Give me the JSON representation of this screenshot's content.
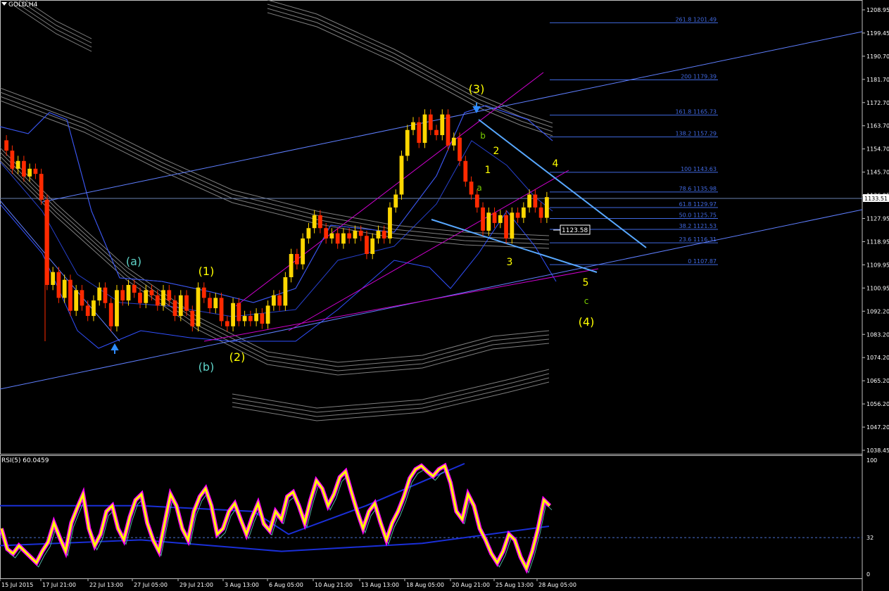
{
  "header": {
    "symbol_label": "GOLD,H4"
  },
  "rsi_panel": {
    "label": "RSI(5) 60.0459",
    "levels": [
      "100",
      "32",
      "0"
    ]
  },
  "colors": {
    "background": "#000000",
    "axis": "#c0c0c0",
    "candle_up": "#ffd700",
    "candle_down": "#ff2a00",
    "bands": "#7f7f7f",
    "bollinger": "#3150ff",
    "fib": "#4169e1",
    "channel": "#d000d0",
    "trend": "#5f7fff",
    "arrow": "#2f8cff",
    "wave_primary": "#ffff00",
    "wave_minor": "#5fd3c8",
    "wave_sub": "#7bd000",
    "rsi_main": "#ffff00",
    "rsi_glow": "#ff00ff"
  },
  "chart_data": {
    "type": "candlestick",
    "title": "GOLD,H4",
    "price_axis": [
      "1208.95",
      "1199.45",
      "1190.70",
      "1181.70",
      "1172.70",
      "1163.70",
      "1154.70",
      "1145.70",
      "1136.95",
      "1127.95",
      "1118.95",
      "1109.95",
      "1100.95",
      "1092.20",
      "1083.20",
      "1074.20",
      "1065.20",
      "1056.20",
      "1047.20",
      "1038.45"
    ],
    "current_price": "1133.51",
    "price_marker": "1123.58",
    "time_axis": [
      "15 Jul 2015",
      "17 Jul 21:00",
      "22 Jul 13:00",
      "27 Jul 05:00",
      "29 Jul 21:00",
      "3 Aug 13:00",
      "6 Aug 05:00",
      "10 Aug 21:00",
      "13 Aug 13:00",
      "18 Aug 05:00",
      "20 Aug 21:00",
      "25 Aug 13:00",
      "28 Aug 05:00"
    ],
    "fibonacci_levels": [
      {
        "label": "261.8 1201.49",
        "price": 1201.49
      },
      {
        "label": "200 1179.39",
        "price": 1179.39
      },
      {
        "label": "161.8 1165.73",
        "price": 1165.73
      },
      {
        "label": "138.2 1157.29",
        "price": 1157.29
      },
      {
        "label": "100 1143.63",
        "price": 1143.63
      },
      {
        "label": "78.6 1135.98",
        "price": 1135.98
      },
      {
        "label": "61.8 1129.97",
        "price": 1129.97
      },
      {
        "label": "50.0 1125.75",
        "price": 1125.75
      },
      {
        "label": "38.2 1121.53",
        "price": 1121.53
      },
      {
        "label": "23.6 1116.31",
        "price": 1116.31
      },
      {
        "label": "0 1107.87",
        "price": 1107.87
      }
    ],
    "wave_labels": [
      {
        "text": "(a)",
        "style": "minor"
      },
      {
        "text": "(b)",
        "style": "minor"
      },
      {
        "text": "(1)",
        "style": "primary"
      },
      {
        "text": "(2)",
        "style": "primary"
      },
      {
        "text": "(3)",
        "style": "primary"
      },
      {
        "text": "(4)",
        "style": "primary"
      },
      {
        "text": "1",
        "style": "primary"
      },
      {
        "text": "2",
        "style": "primary"
      },
      {
        "text": "3",
        "style": "primary"
      },
      {
        "text": "4",
        "style": "primary"
      },
      {
        "text": "5",
        "style": "primary"
      },
      {
        "text": "a",
        "style": "sub"
      },
      {
        "text": "b",
        "style": "sub"
      },
      {
        "text": "c",
        "style": "sub"
      }
    ],
    "price_path": [
      [
        1156,
        1152
      ],
      [
        1152,
        1145
      ],
      [
        1145,
        1148
      ],
      [
        1148,
        1142
      ],
      [
        1142,
        1145
      ],
      [
        1145,
        1143
      ],
      [
        1143,
        1133
      ],
      [
        1133,
        1100
      ],
      [
        1100,
        1105
      ],
      [
        1105,
        1095
      ],
      [
        1095,
        1102
      ],
      [
        1102,
        1090
      ],
      [
        1090,
        1098
      ],
      [
        1098,
        1092
      ],
      [
        1092,
        1088
      ],
      [
        1088,
        1094
      ],
      [
        1094,
        1099
      ],
      [
        1099,
        1093
      ],
      [
        1093,
        1084
      ],
      [
        1084,
        1098
      ],
      [
        1098,
        1094
      ],
      [
        1094,
        1100
      ],
      [
        1100,
        1097
      ],
      [
        1097,
        1093
      ],
      [
        1093,
        1098
      ],
      [
        1098,
        1096
      ],
      [
        1096,
        1092
      ],
      [
        1092,
        1098
      ],
      [
        1098,
        1094
      ],
      [
        1094,
        1088
      ],
      [
        1088,
        1096
      ],
      [
        1096,
        1090
      ],
      [
        1090,
        1084
      ],
      [
        1084,
        1099
      ],
      [
        1099,
        1095
      ],
      [
        1095,
        1091
      ],
      [
        1091,
        1095
      ],
      [
        1095,
        1086
      ],
      [
        1086,
        1084
      ],
      [
        1084,
        1093
      ],
      [
        1093,
        1086
      ],
      [
        1086,
        1088
      ],
      [
        1088,
        1086
      ],
      [
        1086,
        1089
      ],
      [
        1089,
        1085
      ],
      [
        1085,
        1092
      ],
      [
        1092,
        1096
      ],
      [
        1096,
        1092
      ],
      [
        1092,
        1103
      ],
      [
        1103,
        1112
      ],
      [
        1112,
        1108
      ],
      [
        1108,
        1118
      ],
      [
        1118,
        1122
      ],
      [
        1122,
        1127
      ],
      [
        1127,
        1122
      ],
      [
        1122,
        1118
      ],
      [
        1118,
        1120
      ],
      [
        1120,
        1116
      ],
      [
        1116,
        1120
      ],
      [
        1120,
        1118
      ],
      [
        1118,
        1121
      ],
      [
        1121,
        1119
      ],
      [
        1119,
        1112
      ],
      [
        1112,
        1118
      ],
      [
        1118,
        1121
      ],
      [
        1121,
        1118
      ],
      [
        1118,
        1130
      ],
      [
        1130,
        1135
      ],
      [
        1135,
        1150
      ],
      [
        1150,
        1160
      ],
      [
        1160,
        1163
      ],
      [
        1163,
        1155
      ],
      [
        1155,
        1166
      ],
      [
        1166,
        1160
      ],
      [
        1160,
        1158
      ],
      [
        1158,
        1166
      ],
      [
        1166,
        1154
      ],
      [
        1154,
        1157
      ],
      [
        1157,
        1148
      ],
      [
        1148,
        1140
      ],
      [
        1140,
        1135
      ],
      [
        1135,
        1130
      ],
      [
        1130,
        1121
      ],
      [
        1121,
        1128
      ],
      [
        1128,
        1124
      ],
      [
        1124,
        1127
      ],
      [
        1127,
        1118
      ],
      [
        1118,
        1128
      ],
      [
        1128,
        1126
      ],
      [
        1126,
        1130
      ],
      [
        1130,
        1135
      ],
      [
        1135,
        1130
      ],
      [
        1130,
        1126
      ],
      [
        1126,
        1134
      ]
    ],
    "rsi_values": [
      40,
      22,
      18,
      25,
      20,
      15,
      10,
      20,
      28,
      45,
      32,
      20,
      45,
      58,
      70,
      40,
      25,
      35,
      55,
      60,
      40,
      30,
      50,
      65,
      70,
      45,
      30,
      20,
      45,
      70,
      60,
      40,
      30,
      55,
      68,
      75,
      60,
      35,
      40,
      55,
      62,
      48,
      35,
      50,
      62,
      44,
      38,
      55,
      48,
      68,
      72,
      60,
      45,
      65,
      82,
      75,
      60,
      70,
      85,
      90,
      72,
      55,
      40,
      55,
      62,
      45,
      30,
      45,
      55,
      68,
      84,
      92,
      95,
      90,
      86,
      92,
      95,
      80,
      55,
      48,
      70,
      60,
      40,
      30,
      18,
      10,
      20,
      35,
      30,
      15,
      5,
      20,
      40,
      65,
      60
    ],
    "ylim_price": [
      1038.45,
      1208.95
    ],
    "ylim_rsi": [
      0,
      100
    ]
  }
}
